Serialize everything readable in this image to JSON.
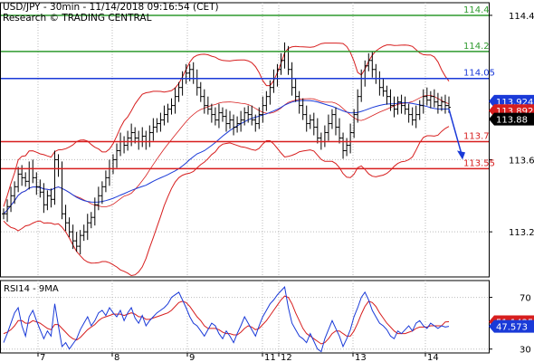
{
  "header": {
    "line1": "USD/JPY - 30min - 11/14/2018 09:16:54 (CET)",
    "line2": "Research © TRADING CENTRAL"
  },
  "chart_data": [
    {
      "type": "line",
      "symbol": "USD/JPY",
      "timeframe": "30min",
      "ylim": [
        112.95,
        114.47
      ],
      "y_ticks": [
        "114.4",
        "113.6",
        "113.2"
      ],
      "x_ticks": [
        "7",
        "8",
        "9",
        "11",
        "12",
        "13",
        "14"
      ],
      "levels": [
        {
          "value": 114.4,
          "label": "114.4",
          "color": "#2e9a2e"
        },
        {
          "value": 114.2,
          "label": "114.2",
          "color": "#2e9a2e"
        },
        {
          "value": 114.05,
          "label": "114.05",
          "color": "#1a3ad8"
        },
        {
          "value": 113.7,
          "label": "113.7",
          "color": "#d71e1e"
        },
        {
          "value": 113.55,
          "label": "113.55",
          "color": "#d71e1e"
        }
      ],
      "price_tags": [
        {
          "value": 113.924,
          "label": "113.924",
          "color": "#1a3ad8"
        },
        {
          "value": 113.892,
          "label": "113.892",
          "color": "#d71e1e"
        },
        {
          "value": 113.88,
          "label": "113.88",
          "color": "#000000"
        }
      ],
      "close": [
        113.3,
        113.34,
        113.4,
        113.45,
        113.52,
        113.5,
        113.48,
        113.55,
        113.5,
        113.45,
        113.42,
        113.35,
        113.4,
        113.38,
        113.6,
        113.55,
        113.3,
        113.25,
        113.2,
        113.15,
        113.12,
        113.18,
        113.2,
        113.25,
        113.28,
        113.35,
        113.4,
        113.45,
        113.5,
        113.55,
        113.6,
        113.65,
        113.7,
        113.68,
        113.72,
        113.75,
        113.72,
        113.7,
        113.73,
        113.7,
        113.75,
        113.78,
        113.8,
        113.82,
        113.85,
        113.88,
        113.9,
        113.95,
        114.0,
        114.05,
        114.08,
        114.1,
        114.05,
        114.0,
        113.95,
        113.9,
        113.88,
        113.85,
        113.82,
        113.86,
        113.84,
        113.8,
        113.82,
        113.78,
        113.8,
        113.82,
        113.86,
        113.85,
        113.82,
        113.8,
        113.85,
        113.9,
        113.95,
        114.0,
        114.05,
        114.1,
        114.15,
        114.2,
        114.1,
        114.0,
        113.95,
        113.9,
        113.85,
        113.8,
        113.82,
        113.78,
        113.72,
        113.7,
        113.75,
        113.8,
        113.85,
        113.78,
        113.72,
        113.65,
        113.68,
        113.75,
        113.85,
        113.95,
        114.05,
        114.12,
        114.15,
        114.1,
        114.05,
        114.0,
        113.98,
        113.95,
        113.9,
        113.88,
        113.92,
        113.9,
        113.88,
        113.85,
        113.82,
        113.85,
        113.9,
        113.95,
        113.93,
        113.95,
        113.92,
        113.9,
        113.92,
        113.9,
        113.89
      ],
      "forecast": {
        "from": 113.88,
        "to": 113.6,
        "color": "#1a3ad8"
      }
    },
    {
      "type": "line",
      "title": "RSI14 - 9MA",
      "ylim": [
        27,
        83
      ],
      "y_ticks": [
        "70",
        "30"
      ],
      "rsi": [
        35,
        42,
        50,
        58,
        62,
        48,
        40,
        55,
        60,
        52,
        45,
        38,
        44,
        40,
        65,
        48,
        32,
        35,
        30,
        34,
        38,
        45,
        50,
        55,
        48,
        52,
        58,
        60,
        56,
        62,
        58,
        55,
        60,
        52,
        58,
        62,
        54,
        50,
        56,
        48,
        52,
        55,
        58,
        60,
        62,
        65,
        70,
        72,
        74,
        68,
        62,
        55,
        50,
        48,
        44,
        40,
        45,
        50,
        48,
        42,
        38,
        44,
        40,
        35,
        42,
        48,
        55,
        50,
        45,
        40,
        48,
        55,
        60,
        65,
        68,
        72,
        75,
        78,
        62,
        50,
        45,
        40,
        38,
        35,
        42,
        36,
        30,
        28,
        38,
        45,
        52,
        46,
        40,
        32,
        38,
        45,
        55,
        62,
        70,
        74,
        68,
        60,
        55,
        50,
        48,
        45,
        40,
        38,
        44,
        42,
        45,
        48,
        44,
        50,
        52,
        48,
        46,
        50,
        48,
        46,
        48,
        47,
        47.6
      ],
      "ma": [
        42,
        43,
        45,
        48,
        52,
        52,
        50,
        50,
        52,
        51,
        50,
        48,
        46,
        45,
        49,
        49,
        46,
        43,
        40,
        38,
        37,
        39,
        42,
        45,
        47,
        49,
        52,
        54,
        55,
        56,
        57,
        57,
        57,
        56,
        57,
        58,
        57,
        55,
        55,
        53,
        53,
        54,
        55,
        56,
        57,
        58,
        60,
        63,
        66,
        67,
        66,
        63,
        59,
        55,
        52,
        48,
        46,
        46,
        46,
        45,
        43,
        42,
        42,
        41,
        41,
        43,
        46,
        48,
        47,
        45,
        46,
        49,
        52,
        56,
        60,
        64,
        68,
        71,
        70,
        65,
        58,
        52,
        46,
        42,
        40,
        38,
        36,
        34,
        35,
        38,
        42,
        44,
        44,
        42,
        40,
        40,
        44,
        50,
        57,
        63,
        67,
        66,
        63,
        58,
        54,
        50,
        47,
        44,
        42,
        42,
        42,
        43,
        44,
        46,
        47,
        47,
        47,
        48,
        48,
        48,
        48,
        51,
        51.14
      ],
      "value_tags": [
        {
          "value": 51.1425,
          "label": "51.1425",
          "color": "#d71e1e"
        },
        {
          "value": 47.573,
          "label": "47.573",
          "color": "#1a3ad8"
        }
      ]
    }
  ]
}
